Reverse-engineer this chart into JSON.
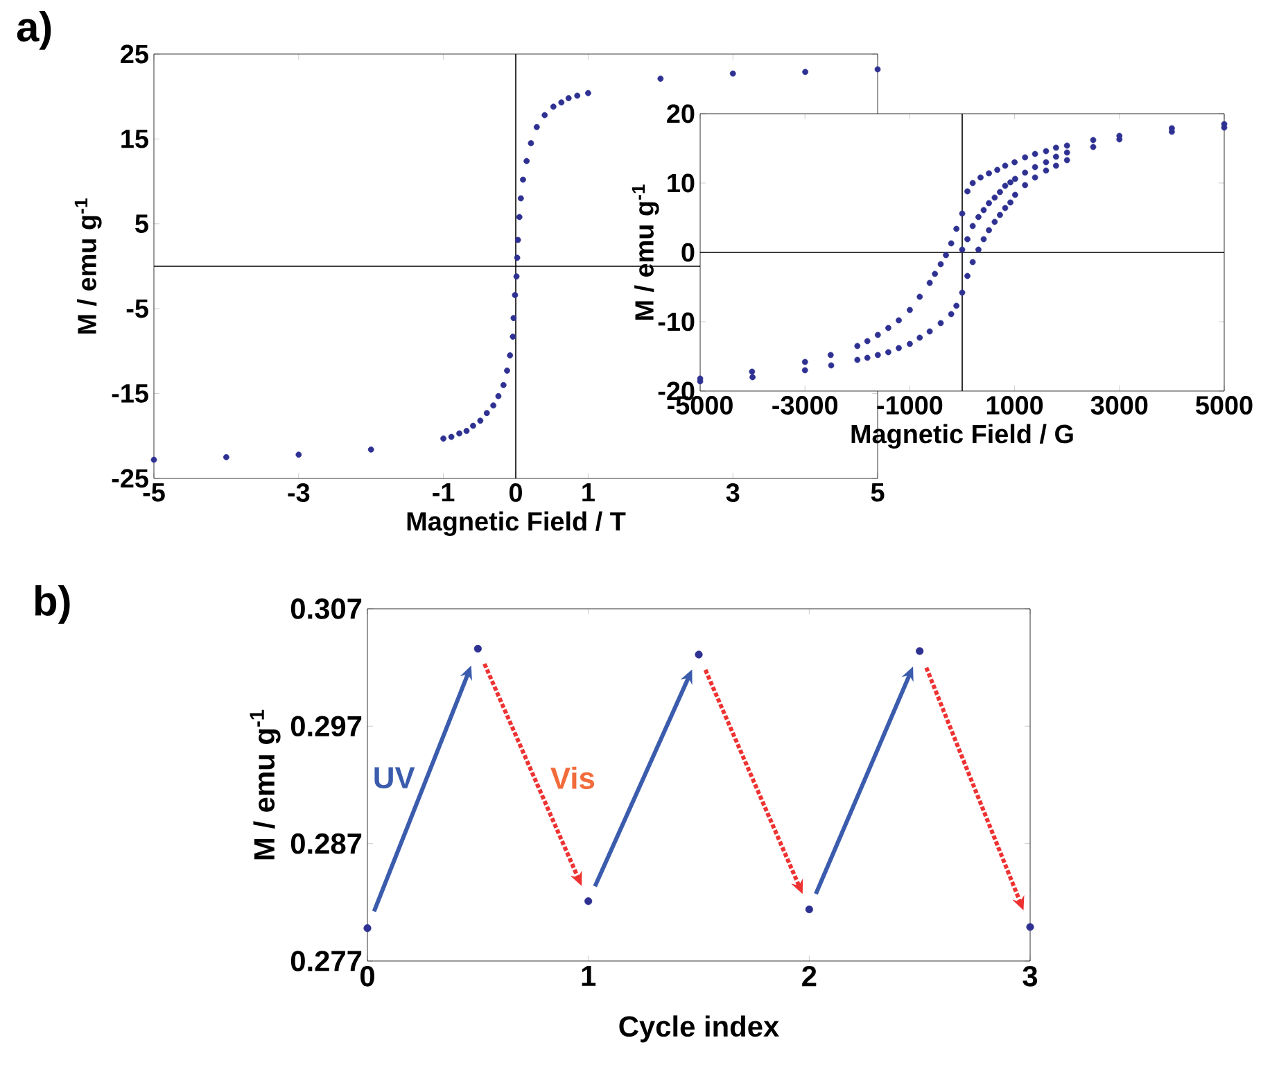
{
  "chart_data": [
    {
      "type": "scatter",
      "xlabel": "Magnetic Field / T",
      "ylabel": "M / emu   g$^{-1}$",
      "color": "#2e3192",
      "marker": "circle",
      "x": [
        -5,
        -4,
        -3,
        -2,
        -1,
        -0.89,
        -0.78,
        -0.68,
        -0.59,
        -0.49,
        -0.4,
        -0.31,
        -0.24,
        -0.17,
        -0.12,
        -0.08,
        -0.04,
        -0.03,
        -0.01,
        0.01,
        0.02,
        0.03,
        0.05,
        0.07,
        0.1,
        0.15,
        0.21,
        0.29,
        0.4,
        0.52,
        0.63,
        0.73,
        0.85,
        1,
        2,
        3,
        4,
        5
      ],
      "values": [
        -22.8,
        -22.5,
        -22.2,
        -21.6,
        -20.3,
        -20.1,
        -19.7,
        -19.4,
        -18.8,
        -18.2,
        -17.3,
        -16.4,
        -15.3,
        -14.0,
        -12.3,
        -10.5,
        -8.3,
        -6.1,
        -3.4,
        -1.2,
        1.0,
        3.1,
        5.8,
        8.0,
        10.2,
        12.4,
        14.5,
        16.4,
        17.8,
        18.8,
        19.3,
        19.8,
        20.1,
        20.4,
        22.1,
        22.7,
        22.9,
        23.2
      ],
      "xlim": [
        -5,
        5
      ],
      "ylim": [
        -25,
        25
      ],
      "xticks": [
        -5,
        -3,
        -1,
        0,
        1,
        3,
        5
      ],
      "yticks": [
        -25,
        -15,
        -5,
        5,
        15,
        25
      ],
      "annotations": [
        "a)"
      ]
    },
    {
      "type": "scatter",
      "xlabel": "Magnetic Field / G",
      "ylabel": "M / emu   g$^{-1}$",
      "color": "#2e3192",
      "marker": "circle",
      "x": [
        5000,
        4000,
        3000,
        2500,
        2000,
        1790,
        1600,
        1390,
        1200,
        1000,
        820,
        670,
        510,
        350,
        200,
        100,
        0,
        -110,
        -210,
        -310,
        -410,
        -520,
        -620,
        -810,
        -1000,
        -1210,
        -1410,
        -1610,
        -1810,
        -2000,
        -2510,
        -3000,
        -4010,
        -5000,
        -5000,
        -4000,
        -3000,
        -2500,
        -2000,
        -1810,
        -1610,
        -1410,
        -1210,
        -1000,
        -810,
        -620,
        -410,
        -210,
        -110,
        0,
        100,
        200,
        310,
        410,
        510,
        620,
        720,
        820,
        920,
        1010,
        1200,
        1390,
        1600,
        1790,
        2000,
        2500,
        3000,
        4000,
        5000,
        0,
        100,
        200,
        310,
        410,
        510,
        620,
        720,
        820,
        920,
        1010,
        1200,
        1390,
        1600,
        1790,
        2000
      ],
      "values": [
        18.5,
        17.9,
        16.8,
        16.2,
        15.4,
        15.1,
        14.6,
        14.2,
        13.7,
        13.0,
        12.5,
        11.9,
        11.4,
        10.8,
        10.0,
        8.8,
        5.6,
        3.4,
        1.3,
        -0.4,
        -1.7,
        -3.1,
        -4.4,
        -6.4,
        -8.3,
        -9.8,
        -10.9,
        -11.9,
        -12.8,
        -13.5,
        -14.8,
        -15.8,
        -17.2,
        -18.2,
        -18.6,
        -18.0,
        -17.0,
        -16.3,
        -15.5,
        -15.2,
        -14.8,
        -14.4,
        -13.8,
        -13.2,
        -12.3,
        -11.4,
        -10.2,
        -8.9,
        -7.7,
        -5.8,
        -3.4,
        -1.4,
        0.4,
        1.9,
        3.2,
        4.4,
        5.4,
        6.4,
        7.2,
        8.3,
        9.7,
        10.8,
        11.8,
        12.5,
        13.3,
        15.2,
        16.3,
        17.4,
        18.0,
        0.4,
        1.9,
        3.8,
        5.1,
        6.1,
        7.1,
        7.9,
        8.7,
        9.6,
        10.1,
        10.6,
        11.5,
        12.3,
        13.0,
        13.8,
        14.4
      ],
      "xlim": [
        -5000,
        5000
      ],
      "ylim": [
        -20,
        20
      ],
      "xticks": [
        -5000,
        -3000,
        -1000,
        1000,
        3000,
        5000
      ],
      "yticks": [
        -20,
        -10,
        0,
        10,
        20
      ]
    },
    {
      "type": "scatter",
      "xlabel": "Cycle index",
      "ylabel": "M / emu g$^{-1}$",
      "color": "#2e3192",
      "marker": "circle",
      "x": [
        0,
        0.5,
        1,
        1.5,
        2,
        2.5,
        3
      ],
      "values": [
        0.2798,
        0.3036,
        0.2821,
        0.3031,
        0.2814,
        0.3034,
        0.2799
      ],
      "xlim": [
        0,
        3
      ],
      "ylim": [
        0.277,
        0.307
      ],
      "xticks": [
        0,
        1,
        2,
        3
      ],
      "yticks": [
        0.277,
        0.287,
        0.297,
        0.307
      ],
      "annotations": [
        "b)",
        "UV",
        "Vis"
      ]
    }
  ]
}
